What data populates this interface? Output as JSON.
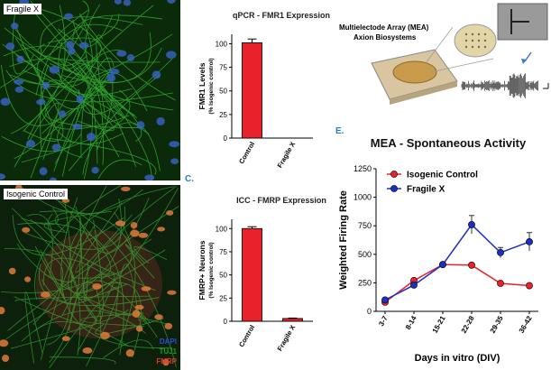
{
  "images": {
    "top": {
      "label": "Fragile X"
    },
    "bottom": {
      "label": "Isogenic Control"
    },
    "stains": [
      {
        "name": "DAPI",
        "color": "#2a4fd6"
      },
      {
        "name": "TUJ1",
        "color": "#1aa01a"
      },
      {
        "name": "FMRP",
        "color": "#e03a2a"
      }
    ]
  },
  "mea_illustration": {
    "title_line1": "Multielectode Array (MEA)",
    "title_line2": "Axion Biosystems"
  },
  "panel_letters": {
    "c": "C.",
    "e": "E."
  },
  "chart_data": [
    {
      "type": "bar",
      "title": "qPCR - FMR1 Expression",
      "ylabel": "FMR1 Levels",
      "ylabel_sub": "(% Isogenic control)",
      "categories": [
        "Control",
        "Fragile X"
      ],
      "values": [
        101,
        0
      ],
      "errors": [
        4,
        0
      ],
      "ylim": [
        0,
        110
      ],
      "yticks": [
        0,
        25,
        50,
        75,
        100
      ],
      "color": "#e8212a"
    },
    {
      "type": "bar",
      "title": "ICC - FMRP Expression",
      "ylabel": "FMRP+ Neurons",
      "ylabel_sub": "(% Isogenic control)",
      "categories": [
        "Control",
        "Fragile X"
      ],
      "values": [
        100,
        3
      ],
      "errors": [
        2,
        0.5
      ],
      "ylim": [
        0,
        110
      ],
      "yticks": [
        0,
        25,
        50,
        75,
        100
      ],
      "color": "#e8212a"
    },
    {
      "type": "line",
      "title": "MEA - Spontaneous Activity",
      "xlabel": "Days in vitro (DIV)",
      "ylabel": "Weighted Firing Rate",
      "categories": [
        "3-7",
        "8-14",
        "15-21",
        "22-28",
        "29-35",
        "36-42"
      ],
      "ylim": [
        0,
        1250
      ],
      "yticks": [
        0,
        250,
        500,
        750,
        1000,
        1250
      ],
      "series": [
        {
          "name": "Isogenic Control",
          "color": "#e8212a",
          "values": [
            80,
            270,
            410,
            405,
            245,
            225
          ],
          "errors": [
            10,
            15,
            15,
            15,
            10,
            10
          ]
        },
        {
          "name": "Fragile X",
          "color": "#1c2fc4",
          "values": [
            100,
            230,
            410,
            760,
            515,
            610
          ],
          "errors": [
            10,
            15,
            15,
            80,
            45,
            80
          ]
        }
      ]
    }
  ]
}
